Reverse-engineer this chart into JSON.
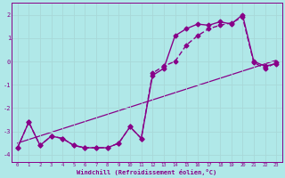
{
  "xlabel": "Windchill (Refroidissement éolien,°C)",
  "ylabel": "",
  "background_color": "#b0e8e8",
  "grid_color": "#c8e8e8",
  "line_color": "#880088",
  "xlim": [
    -0.5,
    23.5
  ],
  "ylim": [
    -4.3,
    2.5
  ],
  "yticks": [
    -4,
    -3,
    -2,
    -1,
    0,
    1,
    2
  ],
  "xticks": [
    0,
    1,
    2,
    3,
    4,
    5,
    6,
    7,
    8,
    9,
    10,
    11,
    12,
    13,
    14,
    15,
    16,
    17,
    18,
    19,
    20,
    21,
    22,
    23
  ],
  "curve1_x": [
    0,
    1,
    2,
    3,
    4,
    5,
    6,
    7,
    8,
    9,
    10,
    11,
    12,
    13,
    14,
    15,
    16,
    17,
    18,
    19,
    20,
    21,
    22,
    23
  ],
  "curve1_y": [
    -3.7,
    -2.6,
    -3.6,
    -3.2,
    -3.3,
    -3.6,
    -3.7,
    -3.7,
    -3.7,
    -3.5,
    -2.8,
    -3.3,
    -0.6,
    -0.3,
    1.1,
    1.4,
    1.6,
    1.55,
    1.7,
    1.6,
    2.0,
    0.0,
    -0.2,
    -0.1
  ],
  "curve2_x": [
    0,
    1,
    2,
    3,
    4,
    5,
    6,
    7,
    8,
    9,
    10,
    11,
    12,
    13,
    14,
    15,
    16,
    17,
    18,
    19,
    20,
    21,
    22,
    23
  ],
  "curve2_y": [
    -3.7,
    -2.6,
    -3.6,
    -3.2,
    -3.3,
    -3.6,
    -3.7,
    -3.7,
    -3.7,
    -3.5,
    -2.8,
    -3.3,
    -0.5,
    -0.2,
    0.0,
    0.7,
    1.1,
    1.4,
    1.55,
    1.65,
    1.9,
    -0.05,
    -0.3,
    -0.05
  ],
  "trend_x": [
    0,
    23
  ],
  "trend_y": [
    -3.5,
    0.05
  ],
  "marker": "D",
  "marker_size": 2.5,
  "linewidth": 1.0,
  "trend_linewidth": 0.9
}
